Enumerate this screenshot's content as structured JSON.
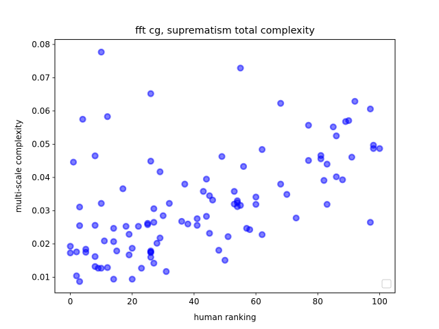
{
  "chart_data": {
    "type": "scatter",
    "title": "fft cg, suprematism total complexity",
    "xlabel": "human ranking",
    "ylabel": "multi-scale complexity",
    "xlim": [
      -5,
      105
    ],
    "ylim": [
      0.0053,
      0.0815
    ],
    "xticks": [
      0,
      20,
      40,
      60,
      80,
      100
    ],
    "yticks": [
      0.01,
      0.02,
      0.03,
      0.04,
      0.05,
      0.06,
      0.07,
      0.08
    ],
    "ytick_labels": [
      "0.01",
      "0.02",
      "0.03",
      "0.04",
      "0.05",
      "0.06",
      "0.07",
      "0.08"
    ],
    "grid": false,
    "legend": "lower-right",
    "marker_color": "#0000ff",
    "series": [
      {
        "x": [
          0,
          0,
          1,
          2,
          2,
          3,
          3,
          3,
          4,
          5,
          5,
          8,
          8,
          8,
          8,
          9,
          10,
          10,
          10,
          11,
          12,
          12,
          14,
          14,
          14,
          15,
          17,
          18,
          19,
          19,
          20,
          20,
          22,
          23,
          25,
          25,
          26,
          26,
          26,
          26,
          26,
          26,
          27,
          27,
          27,
          28,
          29,
          29,
          30,
          31,
          32,
          36,
          37,
          38,
          41,
          41,
          43,
          44,
          44,
          45,
          45,
          46,
          48,
          49,
          50,
          51,
          53,
          53,
          54,
          54,
          54,
          55,
          55,
          56,
          57,
          58,
          60,
          60,
          62,
          62,
          68,
          68,
          70,
          73,
          77,
          77,
          81,
          81,
          82,
          83,
          83,
          85,
          86,
          86,
          88,
          89,
          90,
          91,
          92,
          97,
          97,
          98,
          98,
          100
        ],
        "y": [
          0.0193,
          0.0173,
          0.0446,
          0.0104,
          0.0176,
          0.0087,
          0.0255,
          0.0311,
          0.0575,
          0.0184,
          0.0175,
          0.0465,
          0.0256,
          0.0162,
          0.0132,
          0.0127,
          0.0777,
          0.0322,
          0.0127,
          0.0209,
          0.0583,
          0.0129,
          0.0094,
          0.0247,
          0.0207,
          0.0179,
          0.0366,
          0.0253,
          0.0229,
          0.0167,
          0.0187,
          0.0094,
          0.0253,
          0.0127,
          0.0258,
          0.0262,
          0.0652,
          0.0449,
          0.0179,
          0.016,
          0.0174,
          0.0176,
          0.0142,
          0.0306,
          0.0265,
          0.0202,
          0.0218,
          0.0417,
          0.0285,
          0.0117,
          0.0322,
          0.0268,
          0.038,
          0.026,
          0.0276,
          0.0256,
          0.0358,
          0.0283,
          0.0395,
          0.0345,
          0.0232,
          0.0332,
          0.0181,
          0.0463,
          0.0151,
          0.0222,
          0.0358,
          0.032,
          0.033,
          0.0312,
          0.0324,
          0.0729,
          0.0316,
          0.0433,
          0.0247,
          0.0243,
          0.0341,
          0.0319,
          0.0228,
          0.0484,
          0.038,
          0.0623,
          0.0349,
          0.0278,
          0.0451,
          0.0557,
          0.0466,
          0.0456,
          0.0391,
          0.0319,
          0.044,
          0.0552,
          0.0525,
          0.0402,
          0.0393,
          0.0568,
          0.0571,
          0.0461,
          0.0629,
          0.0265,
          0.0606,
          0.0497,
          0.0487,
          0.0487
        ]
      }
    ]
  }
}
